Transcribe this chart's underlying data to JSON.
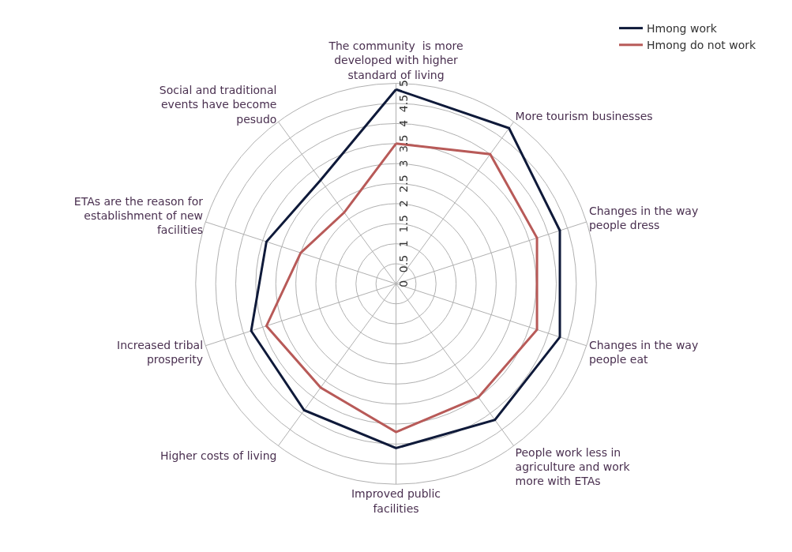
{
  "chart_data": {
    "type": "radar",
    "categories": [
      "The community  is more developed with higher standard of living",
      "More tourism businesses",
      "Changes in the way people dress",
      "Changes in the way people eat",
      "People work less in agriculture and work more with ETAs",
      "Improved public facilities",
      "Higher costs of living",
      "Increased tribal prosperity",
      "ETAs are the reason for establishment of new facilities",
      "Social and traditional events have become pesudo"
    ],
    "series": [
      {
        "name": "Hmong work",
        "color": "#0f1a3a",
        "values": [
          4.85,
          4.8,
          4.3,
          4.3,
          4.2,
          4.1,
          3.9,
          3.8,
          3.4,
          3.2
        ]
      },
      {
        "name": "Hmong do not work",
        "color": "#b85a58",
        "values": [
          3.5,
          4.0,
          3.7,
          3.7,
          3.5,
          3.7,
          3.2,
          3.4,
          2.5,
          2.2
        ]
      }
    ],
    "ylim": [
      0,
      5
    ],
    "yticks": [
      0,
      0.5,
      1,
      1.5,
      2,
      2.5,
      3,
      3.5,
      4,
      4.5,
      5
    ],
    "grid": true,
    "legend": "top right",
    "marker": "none",
    "line_style": "solid"
  }
}
